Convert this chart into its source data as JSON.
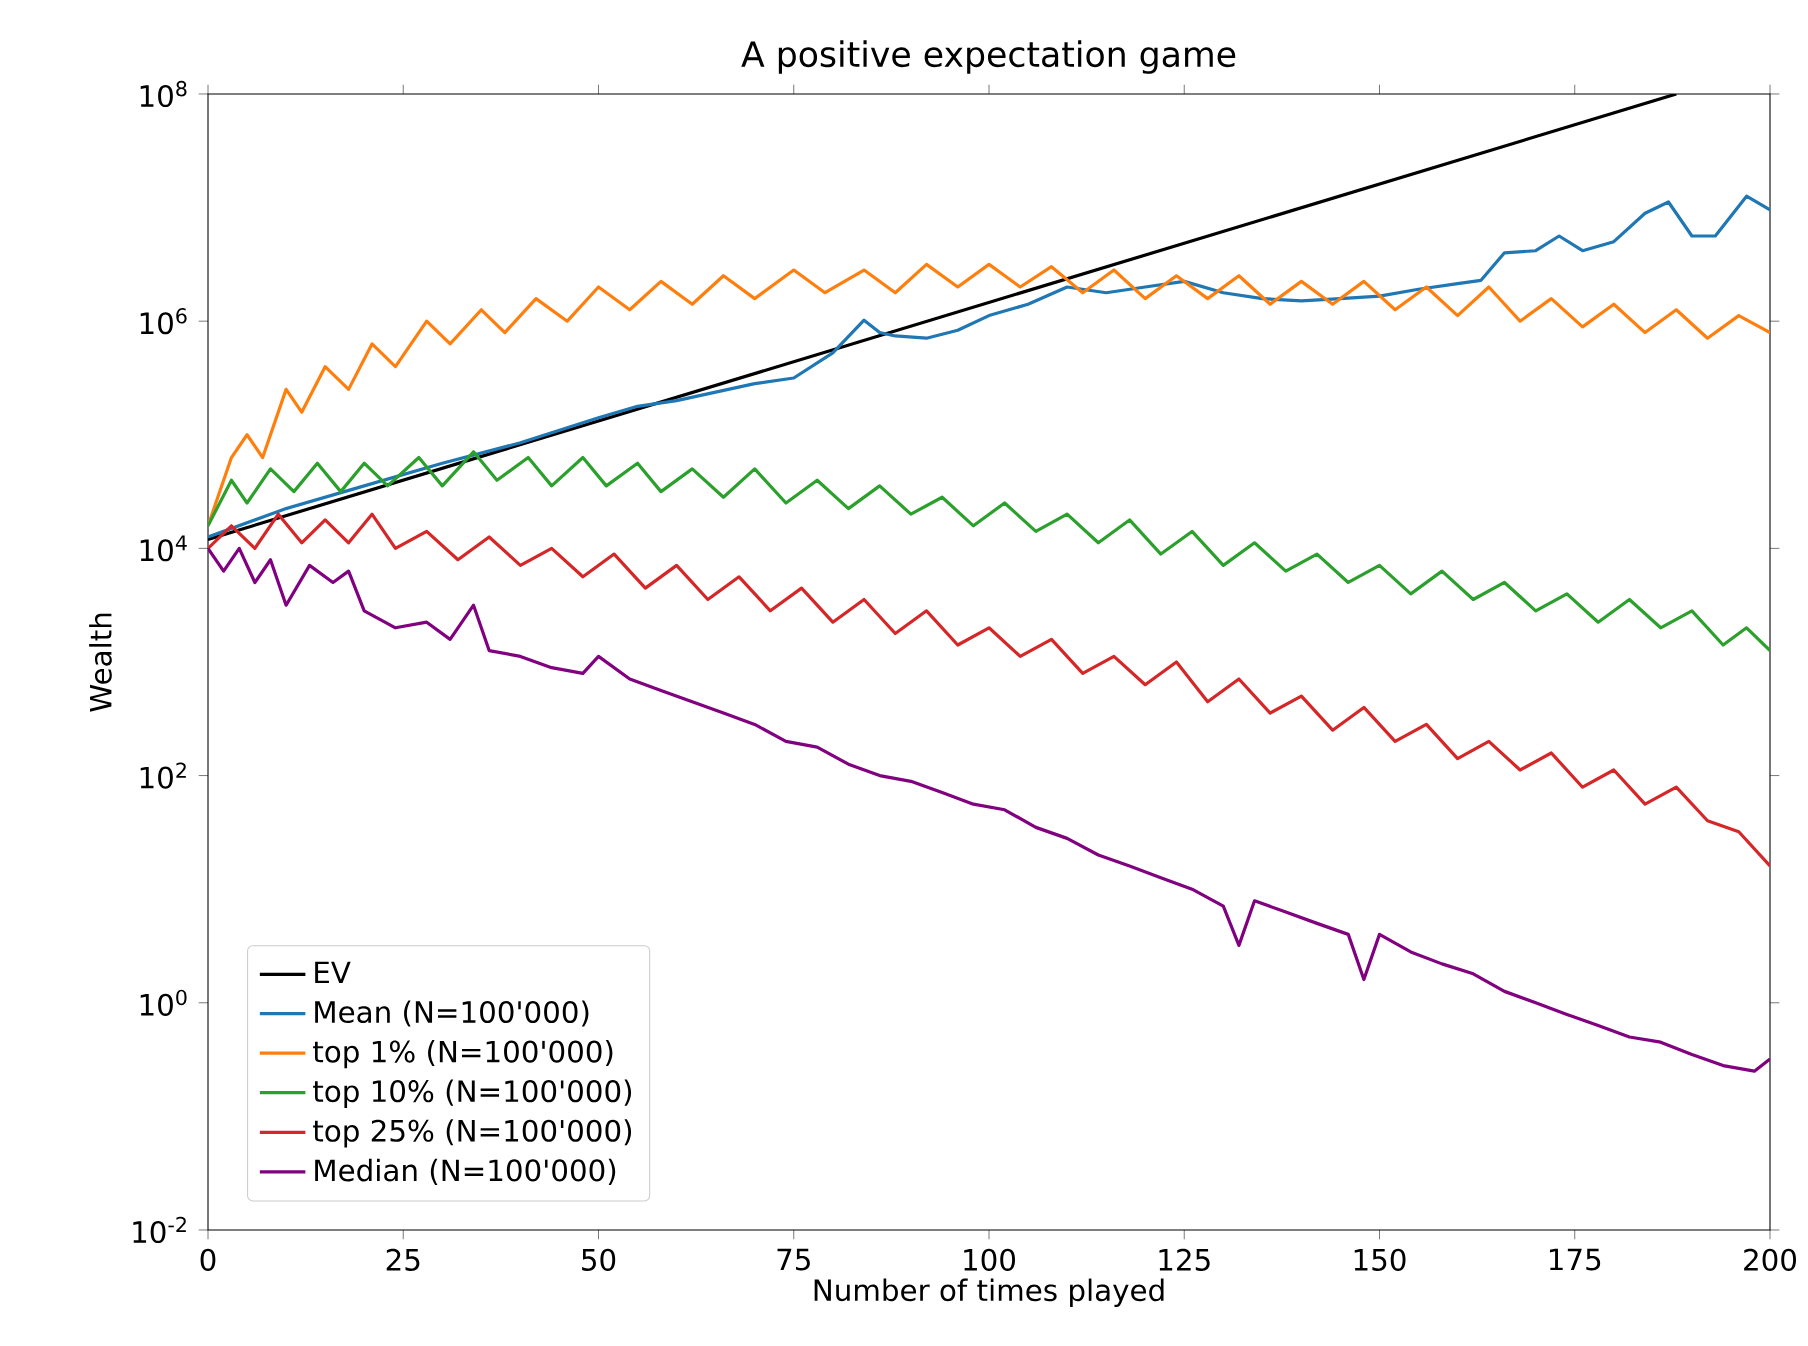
{
  "chart_data": {
    "type": "line",
    "title": "A positive expectation game",
    "xlabel": "Number of times played",
    "ylabel": "Wealth",
    "log": "y",
    "legend": "bottom left",
    "grid": false,
    "line_style": "solid",
    "marker": "none",
    "xlim": [
      0,
      200
    ],
    "ylim": [
      0.01,
      100000000
    ],
    "xticks": [
      0,
      25,
      50,
      75,
      100,
      125,
      150,
      175,
      200
    ],
    "yticks": [
      {
        "value": 0.01,
        "label": "10$^{-2}$"
      },
      {
        "value": 1,
        "label": "10$^{0}$"
      },
      {
        "value": 100,
        "label": "10$^{2}$"
      },
      {
        "value": 10000,
        "label": "10$^{4}$"
      },
      {
        "value": 1000000,
        "label": "10$^{6}$"
      },
      {
        "value": 100000000,
        "label": "10$^{8}$"
      }
    ],
    "series": [
      {
        "name": "EV",
        "color": "#000000",
        "x": [
          0,
          188
        ],
        "values": [
          12000,
          100000000
        ]
      },
      {
        "name": "Mean (N=100'000)",
        "color": "#1f77b4",
        "x": [
          0,
          10,
          20,
          30,
          40,
          50,
          55,
          60,
          70,
          75,
          80,
          84,
          86,
          88,
          92,
          96,
          100,
          105,
          110,
          115,
          120,
          125,
          130,
          135,
          140,
          145,
          150,
          155,
          160,
          163,
          166,
          170,
          173,
          176,
          180,
          184,
          187,
          190,
          193,
          197,
          200
        ],
        "values": [
          12600,
          22400,
          35500,
          56200,
          85000,
          141000,
          178000,
          200000,
          282000,
          316000,
          525000,
          1020000,
          794000,
          741000,
          708000,
          832000,
          1120000,
          1410000,
          2000000,
          1780000,
          2000000,
          2240000,
          1780000,
          1580000,
          1510000,
          1580000,
          1660000,
          1910000,
          2140000,
          2290000,
          4000000,
          4170000,
          5620000,
          4170000,
          5010000,
          8910000,
          11200000,
          5620000,
          5620000,
          12600000,
          9550000
        ]
      },
      {
        "name": "top 1% (N=100'000)",
        "color": "#ff7f0e",
        "x": [
          0,
          3,
          5,
          7,
          10,
          12,
          15,
          18,
          21,
          24,
          28,
          31,
          35,
          38,
          42,
          46,
          50,
          54,
          58,
          62,
          66,
          70,
          75,
          79,
          84,
          88,
          92,
          96,
          100,
          104,
          108,
          112,
          116,
          120,
          124,
          128,
          132,
          136,
          140,
          144,
          148,
          152,
          156,
          160,
          164,
          168,
          172,
          176,
          180,
          184,
          188,
          192,
          196,
          200
        ],
        "values": [
          15800,
          63000,
          100000,
          63000,
          251000,
          158000,
          398000,
          251000,
          631000,
          398000,
          1000000,
          631000,
          1260000,
          794000,
          1580000,
          1000000,
          2000000,
          1260000,
          2240000,
          1410000,
          2510000,
          1580000,
          2820000,
          1780000,
          2820000,
          1780000,
          3160000,
          2000000,
          3160000,
          2000000,
          3020000,
          1780000,
          2820000,
          1580000,
          2510000,
          1580000,
          2510000,
          1410000,
          2240000,
          1410000,
          2240000,
          1260000,
          2000000,
          1120000,
          2000000,
          1000000,
          1580000,
          891000,
          1410000,
          794000,
          1260000,
          708000,
          1120000,
          794000
        ]
      },
      {
        "name": "top 10% (N=100'000)",
        "color": "#2ca02c",
        "x": [
          0,
          3,
          5,
          8,
          11,
          14,
          17,
          20,
          23,
          27,
          30,
          34,
          37,
          41,
          44,
          48,
          51,
          55,
          58,
          62,
          66,
          70,
          74,
          78,
          82,
          86,
          90,
          94,
          98,
          102,
          106,
          110,
          114,
          118,
          122,
          126,
          130,
          134,
          138,
          142,
          146,
          150,
          154,
          158,
          162,
          166,
          170,
          174,
          178,
          182,
          186,
          190,
          194,
          197,
          200
        ],
        "values": [
          15800,
          39800,
          25100,
          50100,
          31600,
          56200,
          31600,
          56200,
          35500,
          63100,
          35500,
          70800,
          39800,
          63100,
          35500,
          63100,
          35500,
          56200,
          31600,
          50100,
          28200,
          50100,
          25100,
          39800,
          22400,
          35500,
          20000,
          28200,
          15800,
          25100,
          14100,
          20000,
          11200,
          17800,
          8910,
          14100,
          7080,
          11200,
          6310,
          8910,
          5010,
          7080,
          3980,
          6310,
          3550,
          5010,
          2820,
          3980,
          2240,
          3550,
          2000,
          2820,
          1410,
          2000,
          1260
        ]
      },
      {
        "name": "top 25% (N=100'000)",
        "color": "#d62728",
        "x": [
          0,
          3,
          6,
          9,
          12,
          15,
          18,
          21,
          24,
          28,
          32,
          36,
          40,
          44,
          48,
          52,
          56,
          60,
          64,
          68,
          72,
          76,
          80,
          84,
          88,
          92,
          96,
          100,
          104,
          108,
          112,
          116,
          120,
          124,
          128,
          132,
          136,
          140,
          144,
          148,
          152,
          156,
          160,
          164,
          168,
          172,
          176,
          180,
          184,
          188,
          192,
          196,
          200
        ],
        "values": [
          10000,
          15800,
          10000,
          20000,
          11200,
          17800,
          11200,
          20000,
          10000,
          14100,
          7940,
          12600,
          7080,
          10000,
          5620,
          8910,
          4470,
          7080,
          3550,
          5620,
          2820,
          4470,
          2240,
          3550,
          1780,
          2820,
          1410,
          2000,
          1120,
          1580,
          794,
          1120,
          631,
          1000,
          447,
          708,
          355,
          501,
          251,
          398,
          200,
          282,
          141,
          200,
          112,
          158,
          79,
          112,
          56,
          79,
          40,
          32,
          16
        ]
      },
      {
        "name": "Median (N=100'000)",
        "color": "#800080",
        "x": [
          0,
          2,
          4,
          6,
          8,
          10,
          13,
          16,
          18,
          20,
          24,
          28,
          31,
          34,
          36,
          40,
          44,
          48,
          50,
          54,
          58,
          62,
          66,
          70,
          74,
          78,
          82,
          86,
          90,
          94,
          98,
          102,
          106,
          110,
          114,
          118,
          122,
          126,
          130,
          132,
          134,
          138,
          142,
          146,
          148,
          150,
          154,
          158,
          162,
          166,
          170,
          174,
          178,
          182,
          186,
          190,
          194,
          198,
          200
        ],
        "values": [
          10000,
          6310,
          10000,
          5010,
          7940,
          3160,
          7080,
          5010,
          6310,
          2820,
          2000,
          2240,
          1580,
          3160,
          1260,
          1120,
          891,
          794,
          1120,
          708,
          562,
          447,
          355,
          282,
          200,
          178,
          126,
          100,
          89,
          71,
          56,
          50,
          35,
          28,
          20,
          16,
          12.6,
          10,
          7.1,
          3.2,
          7.9,
          6.3,
          5.0,
          4.0,
          1.6,
          4.0,
          2.8,
          2.2,
          1.8,
          1.26,
          1.0,
          0.79,
          0.63,
          0.5,
          0.45,
          0.35,
          0.28,
          0.25,
          0.32
        ]
      }
    ]
  }
}
